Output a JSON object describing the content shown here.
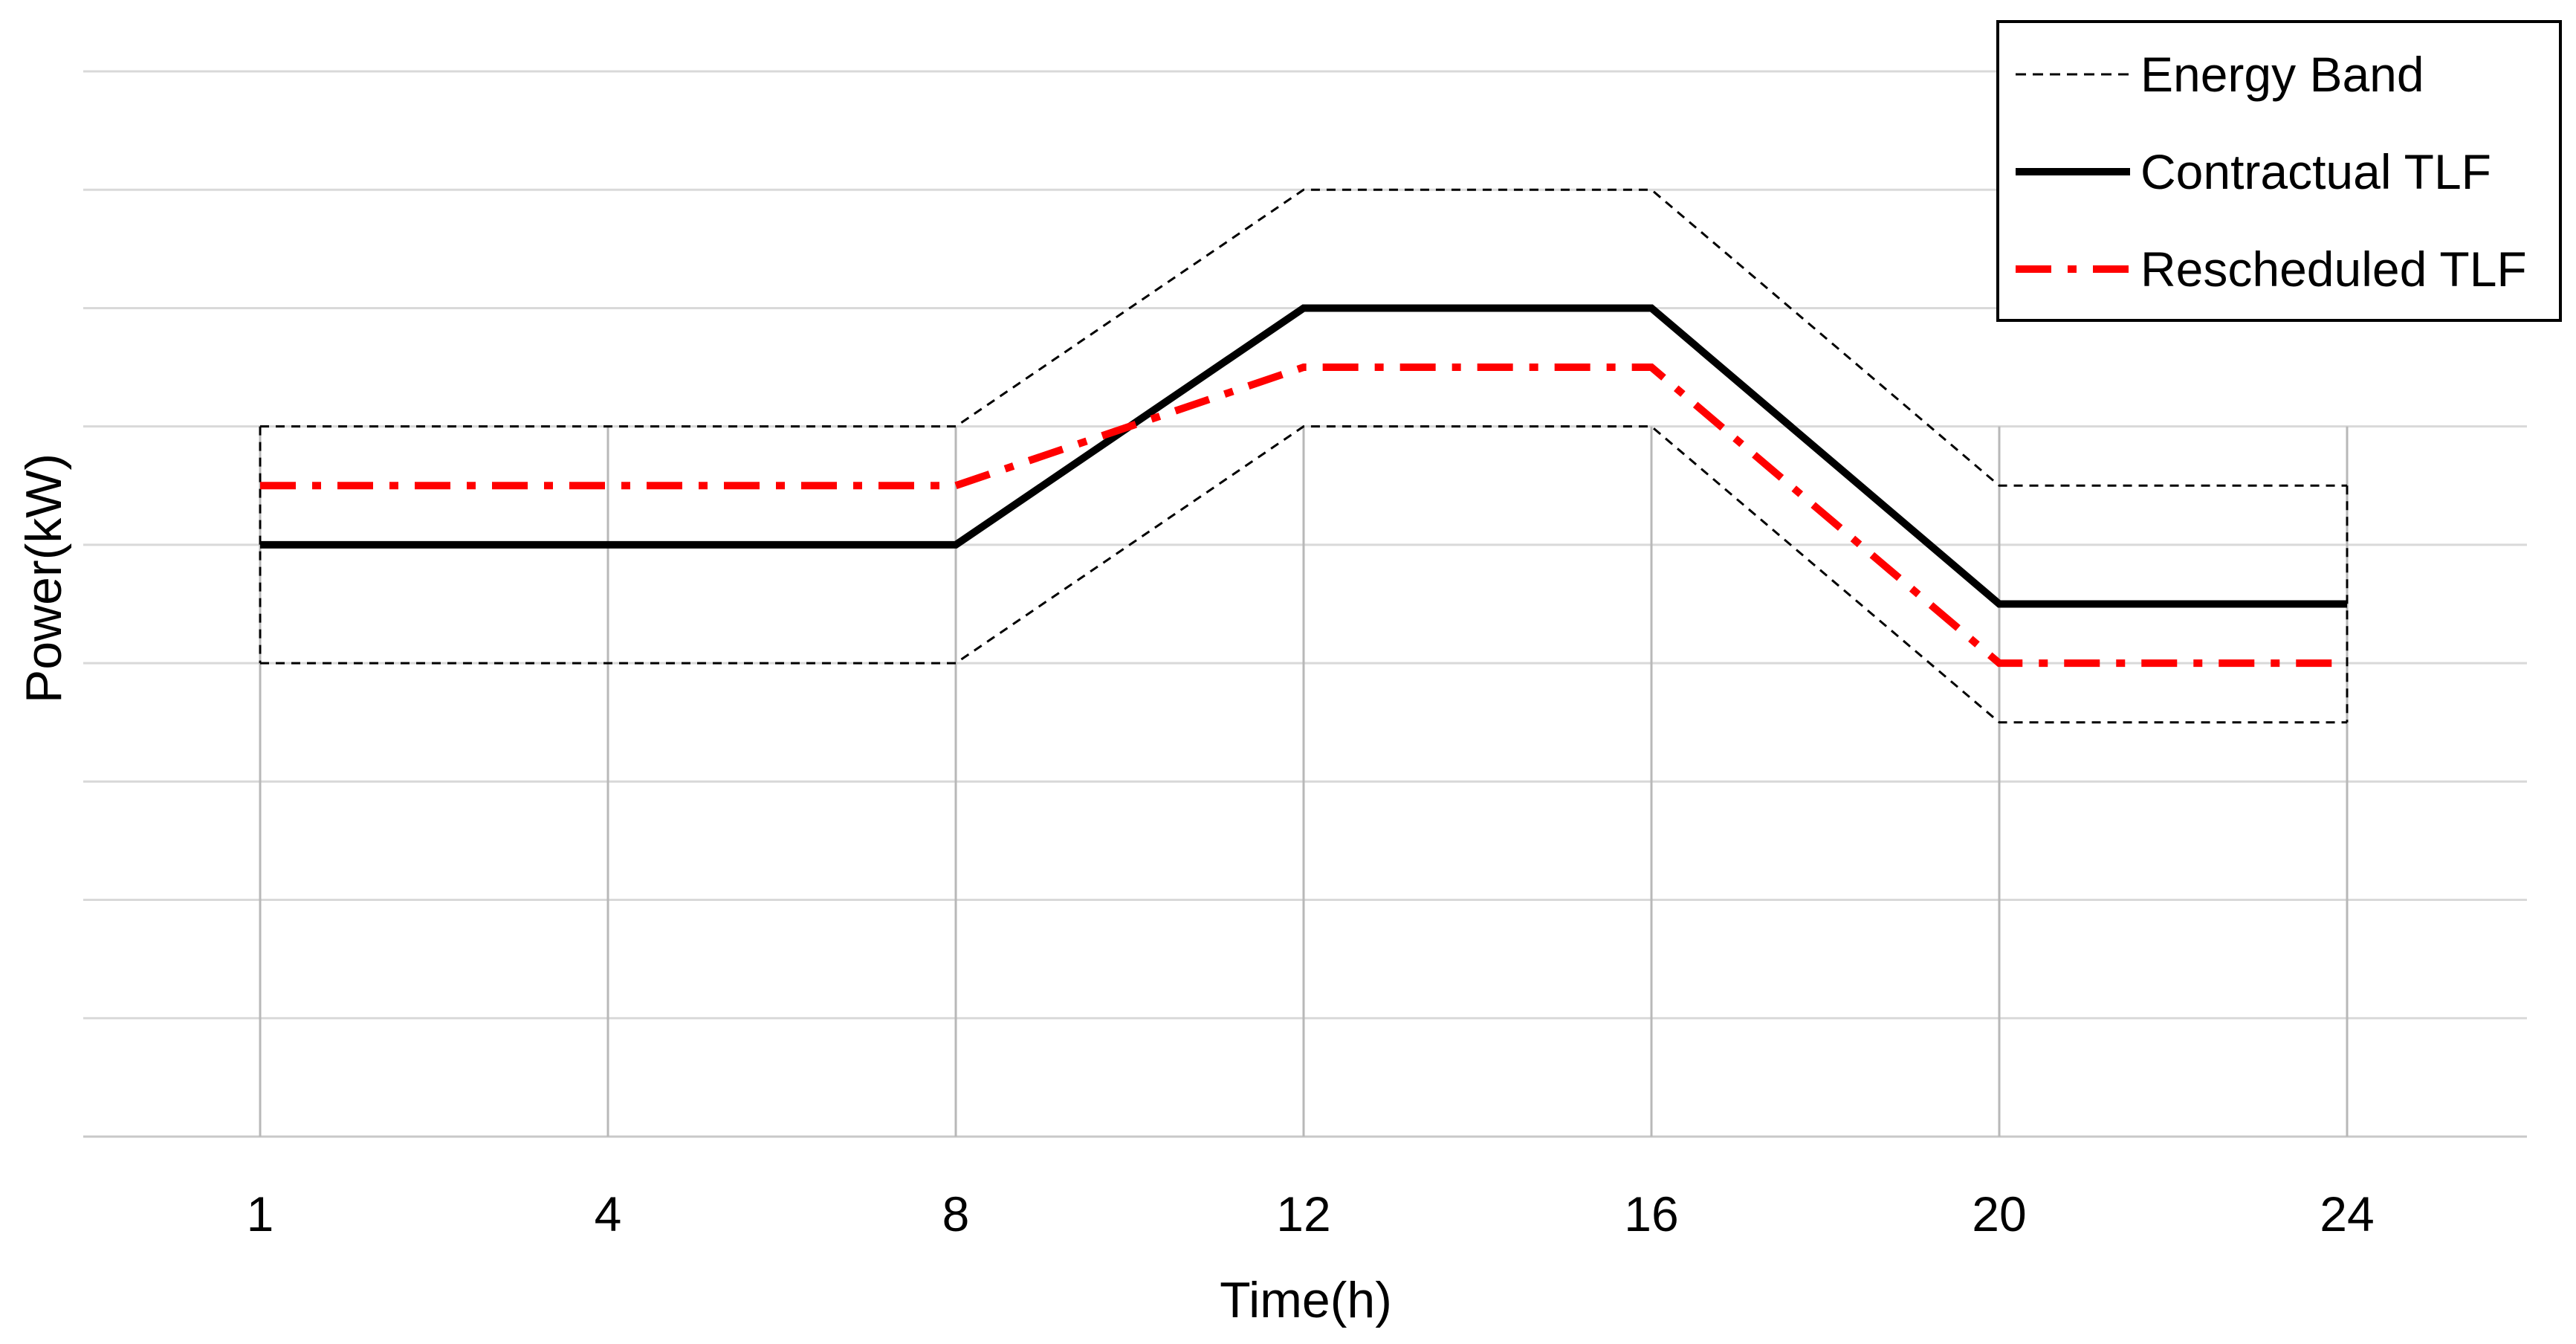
{
  "chart_data": {
    "type": "line",
    "title": "",
    "xlabel": "Time(h)",
    "ylabel": "Power(kW)",
    "x_categories": [
      "1",
      "4",
      "8",
      "12",
      "16",
      "20",
      "24"
    ],
    "ylim": [
      0,
      9
    ],
    "y_tick_labels_shown": false,
    "grid": {
      "horizontal": true,
      "vertical": true
    },
    "legend_position": "top-right",
    "series": [
      {
        "name": "Energy Band",
        "key": "band",
        "style": "thin-dashed",
        "color": "#000000",
        "upper": [
          6,
          6,
          6,
          8,
          8,
          5.5,
          5.5
        ],
        "lower": [
          4,
          4,
          4,
          6,
          6,
          3.5,
          3.5
        ]
      },
      {
        "name": "Contractual TLF",
        "key": "contractual",
        "style": "solid",
        "color": "#000000",
        "values": [
          5,
          5,
          5,
          7,
          7,
          4.5,
          4.5
        ]
      },
      {
        "name": "Rescheduled TLF",
        "key": "rescheduled",
        "style": "dash-dot",
        "color": "#ff0000",
        "values": [
          5.5,
          5.5,
          5.5,
          6.5,
          6.5,
          4,
          4
        ]
      }
    ]
  }
}
